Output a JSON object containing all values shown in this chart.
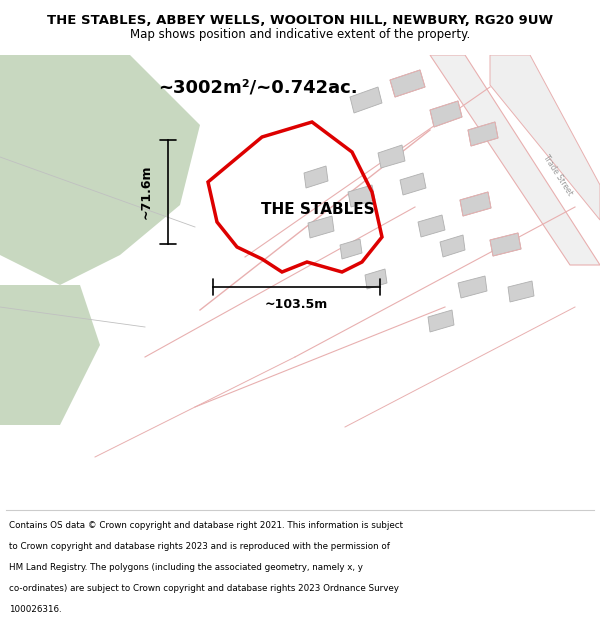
{
  "title_line1": "THE STABLES, ABBEY WELLS, WOOLTON HILL, NEWBURY, RG20 9UW",
  "title_line2": "Map shows position and indicative extent of the property.",
  "area_text": "~3002m²/~0.742ac.",
  "width_label": "~103.5m",
  "height_label": "~71.6m",
  "property_label": "THE STABLES",
  "footer_lines": [
    "Contains OS data © Crown copyright and database right 2021. This information is subject",
    "to Crown copyright and database rights 2023 and is reproduced with the permission of",
    "HM Land Registry. The polygons (including the associated geometry, namely x, y",
    "co-ordinates) are subject to Crown copyright and database rights 2023 Ordnance Survey",
    "100026316."
  ],
  "map_bg": "#f5f5f0",
  "red_color": "#dd0000",
  "light_red": "#e8b0b0",
  "green_area_color": "#c8d8c0",
  "building_color": "#d0d0d0",
  "gray_line": "#c0c0c0"
}
